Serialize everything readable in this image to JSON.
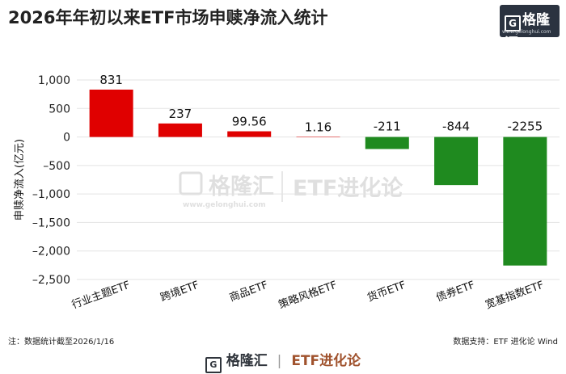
{
  "header": {
    "title": "2026年年初以来ETF市场申赎净流入统计",
    "logo_text": "格隆汇",
    "logo_url": "www.gelonghui.com"
  },
  "watermark": {
    "brand": "格隆汇",
    "url": "www.gelonghui.com",
    "product": "ETF进化论"
  },
  "footer": {
    "note": "注：数据统计截至2026/1/16",
    "source": "数据支持：ETF 进化论 Wind",
    "brand": "格隆汇",
    "product": "ETF进化论",
    "url": "www.gelonghui.com"
  },
  "colors": {
    "positive": "#e00000",
    "negative": "#1f8a1f",
    "grid": "#e3e3e3"
  },
  "chart_data": {
    "type": "bar",
    "title": "2026年年初以来ETF市场申赎净流入统计",
    "xlabel": "",
    "ylabel": "申赎净流入(亿元)",
    "categories": [
      "行业主题ETF",
      "跨境ETF",
      "商品ETF",
      "策略风格ETF",
      "货币ETF",
      "债券ETF",
      "宽基指数ETF"
    ],
    "values": [
      831,
      237,
      99.56,
      1.16,
      -211,
      -844,
      -2255
    ],
    "data_labels": [
      "831",
      "237",
      "99.56",
      "1.16",
      "-211",
      "-844",
      "-2255"
    ],
    "ylim": [
      -2500,
      1000
    ],
    "yticks": [
      1000,
      500,
      0,
      -500,
      -1000,
      -1500,
      -2000,
      -2500
    ],
    "ytick_labels": [
      "1,000",
      "500",
      "0",
      "–500",
      "–1,000",
      "–1,500",
      "–2,000",
      "–2,500"
    ],
    "grid": true
  }
}
